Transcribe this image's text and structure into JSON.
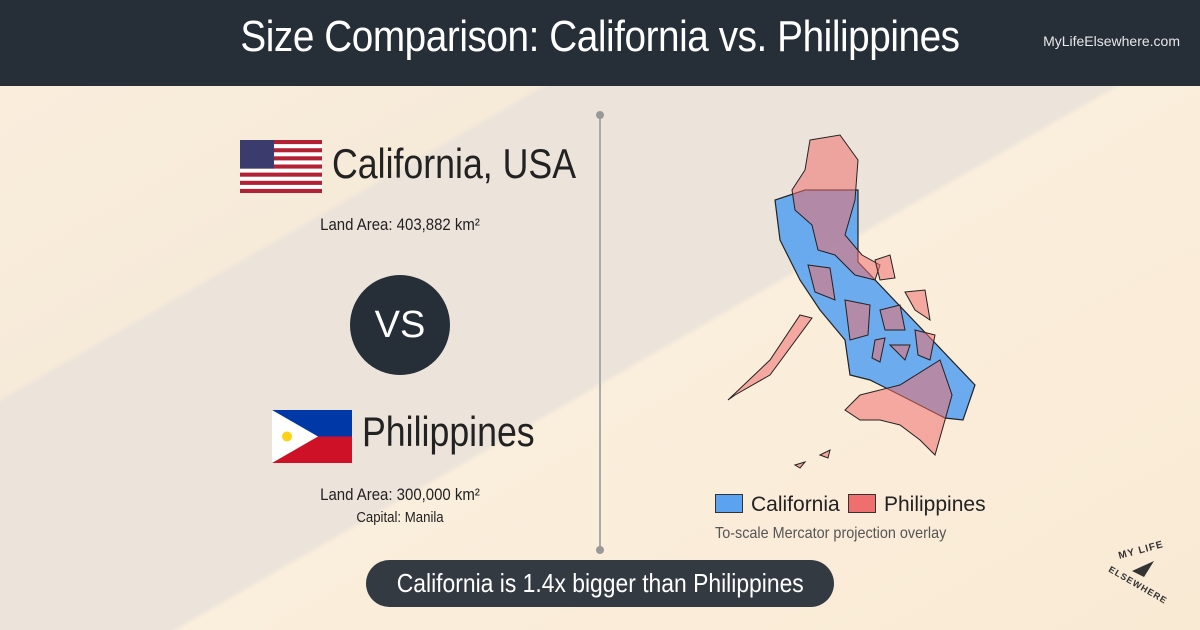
{
  "header": {
    "title": "Size Comparison: California vs. Philippines",
    "site": "MyLifeElsewhere.com"
  },
  "left": {
    "country1": {
      "name": "California, USA",
      "land_area": "Land Area: 403,882 km²"
    },
    "vs": "VS",
    "country2": {
      "name": "Philippines",
      "land_area": "Land Area: 300,000 km²",
      "capital": "Capital: Manila"
    }
  },
  "map": {
    "legend": [
      "California",
      "Philippines"
    ],
    "note": "To-scale Mercator projection overlay"
  },
  "footer": {
    "comparison": "California is 1.4x bigger than Philippines"
  },
  "logo": {
    "line1": "MY LIFE",
    "line2": "ELSEWHERE"
  }
}
